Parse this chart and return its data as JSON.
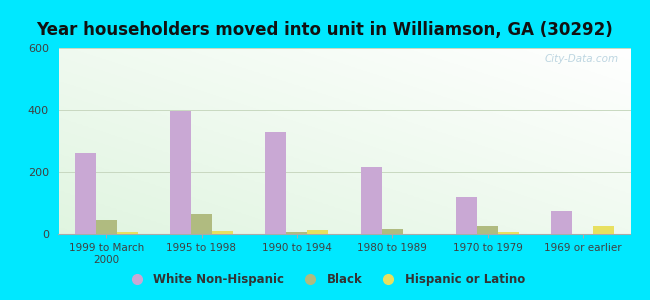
{
  "title": "Year householders moved into unit in Williamson, GA (30292)",
  "categories": [
    "1999 to March\n2000",
    "1995 to 1998",
    "1990 to 1994",
    "1980 to 1989",
    "1970 to 1979",
    "1969 or earlier"
  ],
  "white_non_hispanic": [
    262,
    397,
    330,
    215,
    120,
    75
  ],
  "black": [
    45,
    65,
    5,
    15,
    25,
    0
  ],
  "hispanic_or_latino": [
    5,
    10,
    12,
    0,
    5,
    25
  ],
  "bar_color_white": "#c9a8d4",
  "bar_color_black": "#b0bb80",
  "bar_color_hispanic": "#e8e060",
  "ylim": [
    0,
    600
  ],
  "yticks": [
    0,
    200,
    400,
    600
  ],
  "background_outer": "#00e8ff",
  "title_fontsize": 12,
  "legend_labels": [
    "White Non-Hispanic",
    "Black",
    "Hispanic or Latino"
  ],
  "watermark": "City-Data.com"
}
